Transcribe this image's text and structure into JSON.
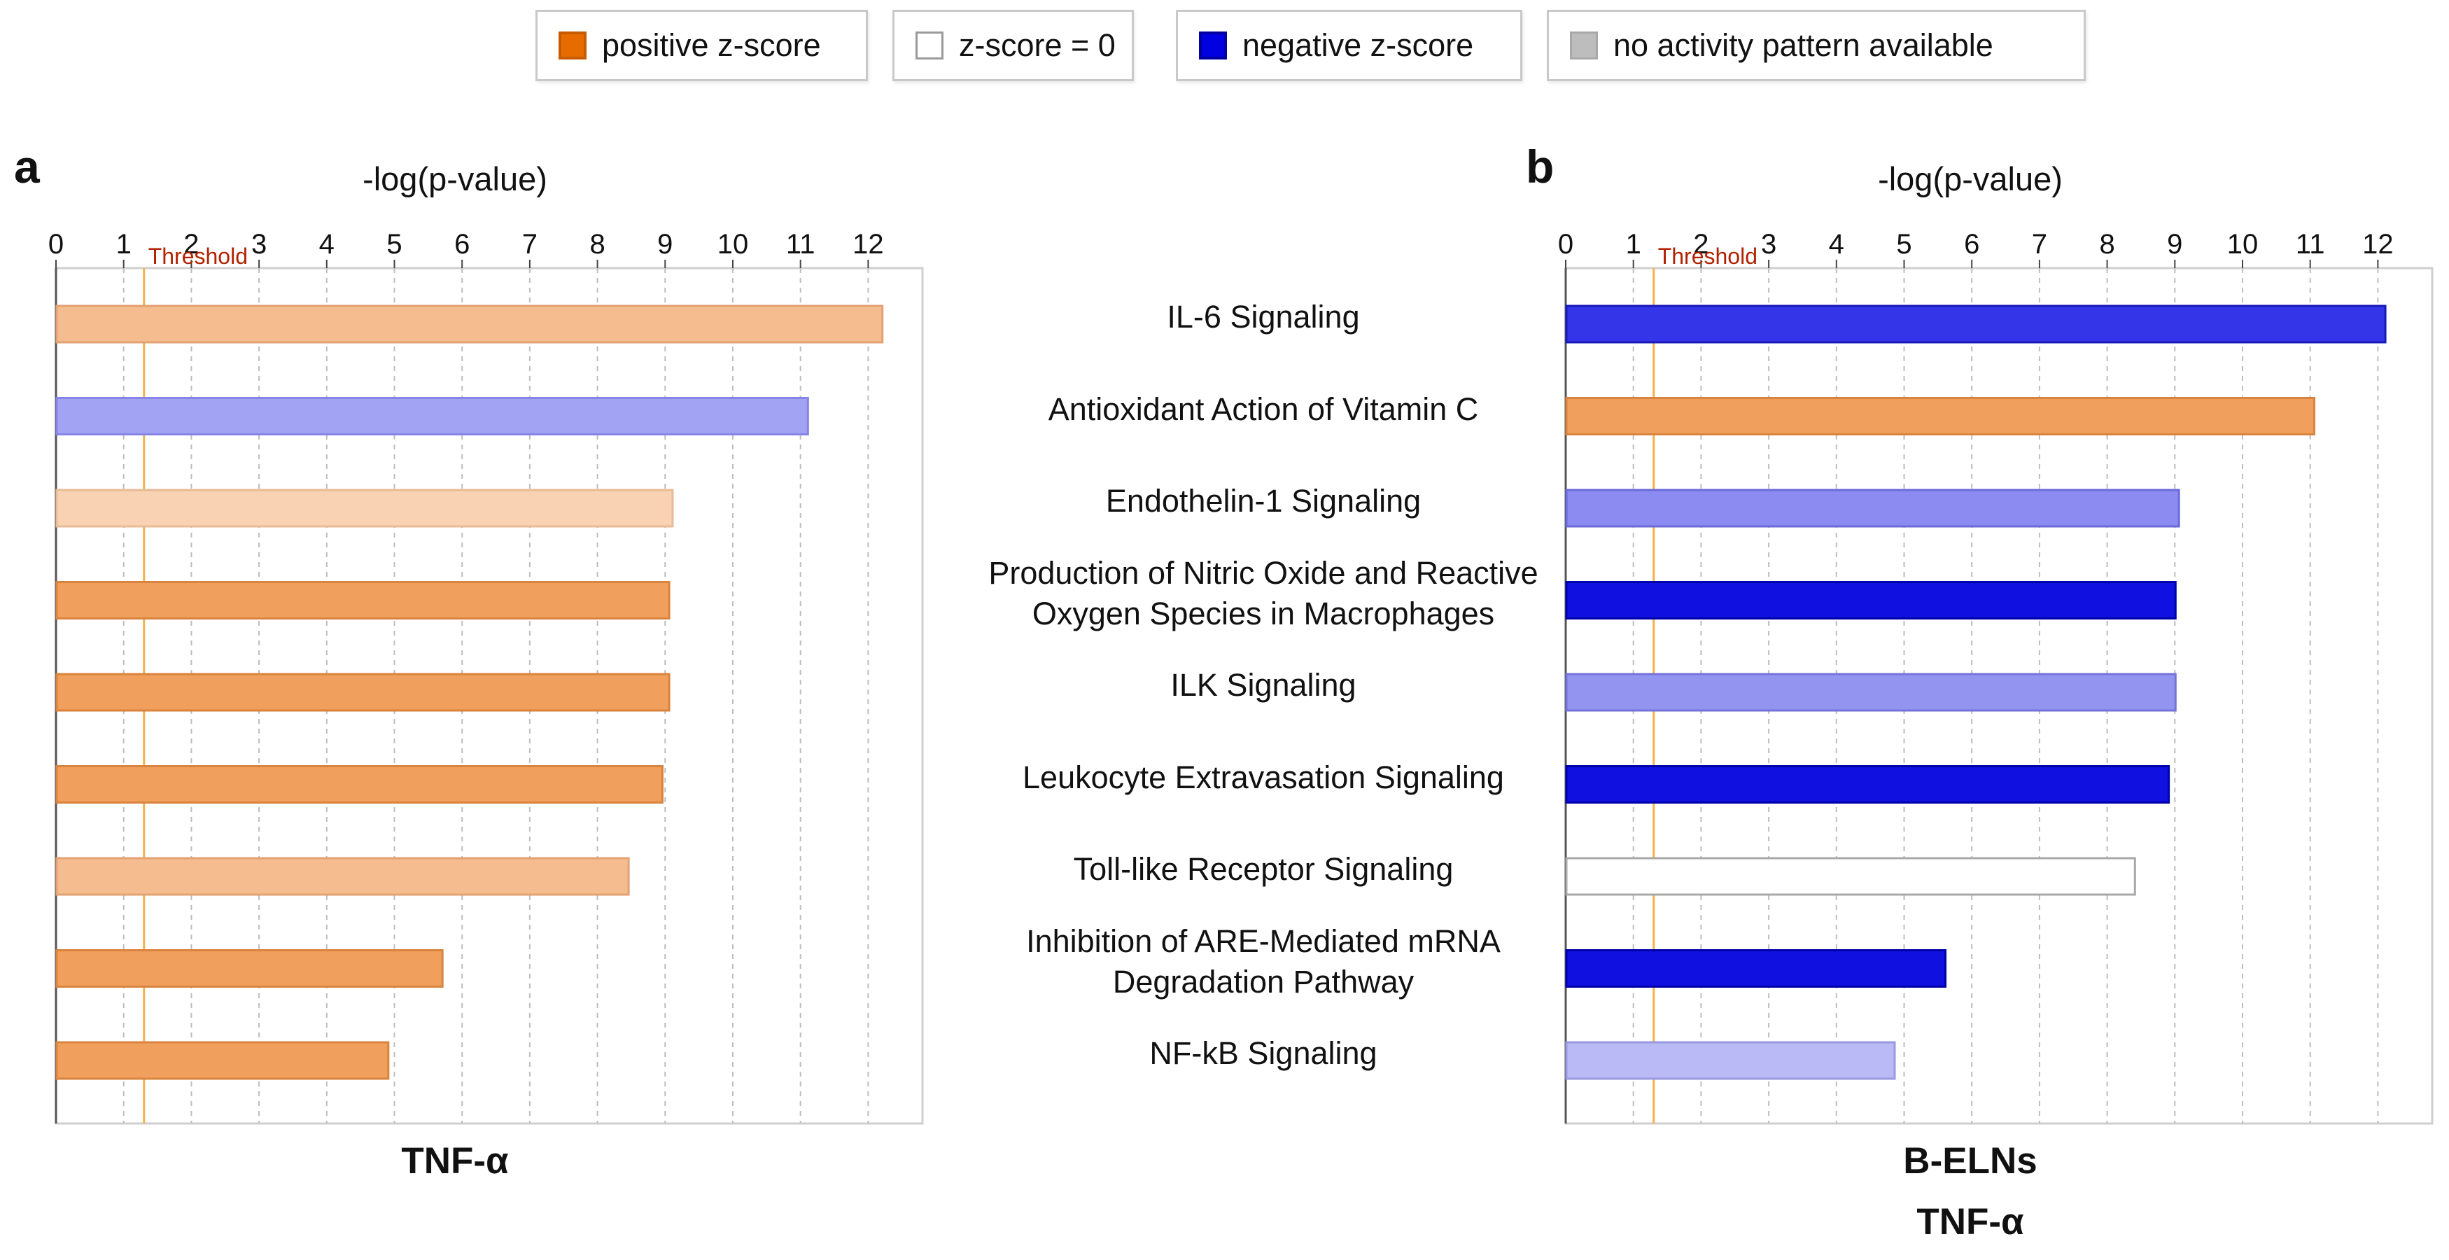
{
  "legend": [
    {
      "label": "positive z-score",
      "fill": "#e66c00",
      "border": "#c85a00"
    },
    {
      "label": "z-score = 0",
      "fill": "#ffffff",
      "border": "#9a9a9a"
    },
    {
      "label": "negative z-score",
      "fill": "#0000e0",
      "border": "#0000a0"
    },
    {
      "label": "no activity pattern available",
      "fill": "#bdbdbd",
      "border": "#a8a8a8"
    }
  ],
  "pathways": [
    "IL-6 Signaling",
    "Antioxidant Action of Vitamin C",
    "Endothelin-1 Signaling",
    "Production of Nitric Oxide and Reactive Oxygen Species in Macrophages",
    "ILK Signaling",
    "Leukocyte Extravasation Signaling",
    "Toll-like Receptor Signaling",
    "Inhibition of ARE-Mediated mRNA Degradation Pathway",
    "NF-kB Signaling"
  ],
  "pathway_lines": [
    [
      "IL-6 Signaling"
    ],
    [
      "Antioxidant Action of Vitamin C"
    ],
    [
      "Endothelin-1 Signaling"
    ],
    [
      "Production of Nitric Oxide and Reactive",
      "Oxygen Species in Macrophages"
    ],
    [
      "ILK Signaling"
    ],
    [
      "Leukocyte Extravasation Signaling"
    ],
    [
      "Toll-like Receptor Signaling"
    ],
    [
      "Inhibition of ARE-Mediated mRNA",
      "Degradation Pathway"
    ],
    [
      "NF-kB Signaling"
    ]
  ],
  "chart_data": [
    {
      "type": "bar",
      "orientation": "horizontal",
      "panel_letter": "a",
      "title": "TNF-α",
      "xlabel": "-log(p-value)",
      "xlim": [
        0,
        12.8
      ],
      "xticks": [
        "0",
        "1",
        "2",
        "3",
        "4",
        "5",
        "6",
        "7",
        "8",
        "9",
        "10",
        "11",
        "12"
      ],
      "threshold": 1.3,
      "threshold_label": "Threshold",
      "categories": [
        "IL-6 Signaling",
        "Antioxidant Action of Vitamin C",
        "Endothelin-1 Signaling",
        "Production of Nitric Oxide and Reactive Oxygen Species in Macrophages",
        "ILK Signaling",
        "Leukocyte Extravasation Signaling",
        "Toll-like Receptor Signaling",
        "Inhibition of ARE-Mediated mRNA Degradation Pathway",
        "NF-kB Signaling"
      ],
      "values": [
        12.2,
        11.1,
        9.1,
        9.05,
        9.05,
        8.95,
        8.45,
        5.7,
        4.9
      ],
      "colors": [
        "#f5bd8f",
        "#a3a3f4",
        "#f8d2b3",
        "#f0a05c",
        "#f0a05c",
        "#f0a05c",
        "#f5bd8f",
        "#f0a05c",
        "#f0a05c"
      ],
      "borders": [
        "#e2a273",
        "#8585e6",
        "#e8bb96",
        "#d9843e",
        "#d9843e",
        "#d9843e",
        "#e2a273",
        "#d9843e",
        "#d9843e"
      ]
    },
    {
      "type": "bar",
      "orientation": "horizontal",
      "panel_letter": "b",
      "title": "B-ELNs",
      "title_line2": "TNF-α",
      "xlabel": "-log(p-value)",
      "xlim": [
        0,
        12.8
      ],
      "xticks": [
        "0",
        "1",
        "2",
        "3",
        "4",
        "5",
        "6",
        "7",
        "8",
        "9",
        "10",
        "11",
        "12"
      ],
      "threshold": 1.3,
      "threshold_label": "Threshold",
      "categories": [
        "IL-6 Signaling",
        "Antioxidant Action of Vitamin C",
        "Endothelin-1 Signaling",
        "Production of Nitric Oxide and Reactive Oxygen Species in Macrophages",
        "ILK Signaling",
        "Leukocyte Extravasation Signaling",
        "Toll-like Receptor Signaling",
        "Inhibition of ARE-Mediated mRNA Degradation Pathway",
        "NF-kB Signaling"
      ],
      "values": [
        12.1,
        11.05,
        9.05,
        9.0,
        9.0,
        8.9,
        8.4,
        5.6,
        4.85
      ],
      "colors": [
        "#3434e8",
        "#f0a05c",
        "#8b8bf2",
        "#1010e0",
        "#9393f0",
        "#1010e0",
        "#ffffff",
        "#1010e0",
        "#babaf6"
      ],
      "borders": [
        "#1a1ab8",
        "#d9843e",
        "#6a6ad8",
        "#0000a8",
        "#7474d8",
        "#0000a8",
        "#a8a8a8",
        "#0000a8",
        "#9a9ae0"
      ]
    }
  ]
}
